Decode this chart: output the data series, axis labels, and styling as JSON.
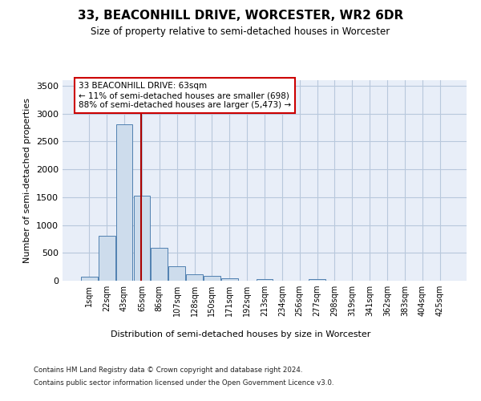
{
  "title": "33, BEACONHILL DRIVE, WORCESTER, WR2 6DR",
  "subtitle": "Size of property relative to semi-detached houses in Worcester",
  "xlabel": "Distribution of semi-detached houses by size in Worcester",
  "ylabel": "Number of semi-detached properties",
  "bar_color": "#cddcec",
  "bar_edge_color": "#5080b0",
  "grid_color": "#b8c8dc",
  "background_color": "#e8eef8",
  "annotation_text": "33 BEACONHILL DRIVE: 63sqm\n← 11% of semi-detached houses are smaller (698)\n88% of semi-detached houses are larger (5,473) →",
  "red_line_color": "#aa0000",
  "categories": [
    "1sqm",
    "22sqm",
    "43sqm",
    "65sqm",
    "86sqm",
    "107sqm",
    "128sqm",
    "150sqm",
    "171sqm",
    "192sqm",
    "213sqm",
    "234sqm",
    "256sqm",
    "277sqm",
    "298sqm",
    "319sqm",
    "341sqm",
    "362sqm",
    "383sqm",
    "404sqm",
    "425sqm"
  ],
  "values": [
    70,
    810,
    2810,
    1520,
    595,
    255,
    110,
    90,
    45,
    0,
    30,
    0,
    0,
    30,
    0,
    0,
    0,
    0,
    0,
    0,
    0
  ],
  "ylim": [
    0,
    3600
  ],
  "yticks": [
    0,
    500,
    1000,
    1500,
    2000,
    2500,
    3000,
    3500
  ],
  "footer_line1": "Contains HM Land Registry data © Crown copyright and database right 2024.",
  "footer_line2": "Contains public sector information licensed under the Open Government Licence v3.0."
}
